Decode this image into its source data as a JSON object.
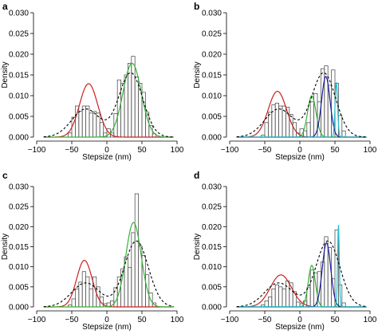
{
  "colors": {
    "red": "#cc1f1f",
    "green": "#36b236",
    "blue": "#1a1a9e",
    "cyan": "#1fbfd0",
    "dashed": "#000000",
    "bar_edge": "#555555"
  },
  "chart_data": [
    {
      "type": "bar",
      "panel_label": "a",
      "xlabel": "Stepsize (nm)",
      "ylabel": "Density",
      "xlim": [
        -100,
        100
      ],
      "ylim": [
        0,
        0.03
      ],
      "xticks": [
        -100,
        -50,
        0,
        50,
        100
      ],
      "xtick_labels": [
        "−100",
        "−50",
        "0",
        "50",
        "100"
      ],
      "yticks": [
        0,
        0.005,
        0.01,
        0.015,
        0.02,
        0.025,
        0.03
      ],
      "ytick_labels": [
        "0.000",
        "0.005",
        "0.010",
        "0.015",
        "0.020",
        "0.025",
        "0.030"
      ],
      "bin_width": 5,
      "hist_x": [
        -55,
        -50,
        -45,
        -40,
        -35,
        -30,
        -25,
        -20,
        -15,
        -10,
        -5,
        0,
        5,
        10,
        15,
        20,
        25,
        30,
        35,
        40,
        45,
        50,
        55,
        60,
        65
      ],
      "hist_y": [
        0.001,
        0.0048,
        0.0075,
        0.0062,
        0.0075,
        0.0075,
        0.0058,
        0.0062,
        0.0058,
        0.0035,
        0.001,
        0.002,
        0.001,
        0.0057,
        0.0138,
        0.013,
        0.015,
        0.0178,
        0.0195,
        0.0145,
        0.013,
        0.0108,
        0.006,
        0.0028,
        0.0008
      ],
      "curves": [
        {
          "color": "red",
          "style": "solid",
          "components": [
            [
              0.42,
              -26,
              13
            ]
          ]
        },
        {
          "color": "green",
          "style": "solid",
          "components": [
            [
              0.58,
              36,
              13
            ]
          ]
        },
        {
          "color": "dashed",
          "style": "dashed",
          "components": [
            [
              0.34,
              -30,
              20
            ],
            [
              0.66,
              34,
              17
            ]
          ]
        }
      ]
    },
    {
      "type": "bar",
      "panel_label": "b",
      "xlabel": "Stepsize (nm)",
      "ylabel": "Density",
      "xlim": [
        -100,
        100
      ],
      "ylim": [
        0,
        0.03
      ],
      "xticks": [
        -100,
        -50,
        0,
        50,
        100
      ],
      "xtick_labels": [
        "−100",
        "−50",
        "0",
        "50",
        "100"
      ],
      "yticks": [
        0,
        0.005,
        0.01,
        0.015,
        0.02,
        0.025,
        0.03
      ],
      "ytick_labels": [
        "0.000",
        "0.005",
        "0.010",
        "0.015",
        "0.020",
        "0.025",
        "0.030"
      ],
      "bin_width": 5,
      "hist_x": [
        -55,
        -50,
        -45,
        -40,
        -35,
        -30,
        -25,
        -20,
        -15,
        -10,
        -5,
        0,
        5,
        10,
        15,
        20,
        25,
        30,
        35,
        40,
        45,
        50,
        55,
        60
      ],
      "hist_y": [
        0.0005,
        0.0035,
        0.006,
        0.0078,
        0.0082,
        0.0075,
        0.0075,
        0.0072,
        0.0055,
        0.0035,
        0.001,
        0.002,
        0.0015,
        0.0035,
        0.0085,
        0.0105,
        0.0085,
        0.0165,
        0.0172,
        0.0125,
        0.0162,
        0.013,
        0.0052,
        0.0015
      ],
      "curves": [
        {
          "color": "red",
          "style": "solid",
          "components": [
            [
              0.36,
              -32,
              13
            ]
          ]
        },
        {
          "color": "green",
          "style": "solid",
          "components": [
            [
              0.15,
              17,
              6
            ]
          ]
        },
        {
          "color": "blue",
          "style": "solid",
          "components": [
            [
              0.22,
              37,
              6
            ]
          ]
        },
        {
          "color": "cyan",
          "style": "solid",
          "components": [
            [
              0.06,
              52,
              1.8
            ]
          ]
        },
        {
          "color": "dashed",
          "style": "dashed",
          "components": [
            [
              0.34,
              -30,
              20
            ],
            [
              0.66,
              34,
              17
            ]
          ]
        }
      ]
    },
    {
      "type": "bar",
      "panel_label": "c",
      "xlabel": "Stepsize (nm)",
      "ylabel": "Density",
      "xlim": [
        -100,
        100
      ],
      "ylim": [
        0,
        0.03
      ],
      "xticks": [
        -100,
        -50,
        0,
        50,
        100
      ],
      "xtick_labels": [
        "−100",
        "−50",
        "0",
        "50",
        "100"
      ],
      "yticks": [
        0,
        0.005,
        0.01,
        0.015,
        0.02,
        0.025,
        0.03
      ],
      "ytick_labels": [
        "0.000",
        "0.005",
        "0.010",
        "0.015",
        "0.020",
        "0.025",
        "0.030"
      ],
      "bin_width": 5,
      "hist_x": [
        -55,
        -50,
        -45,
        -40,
        -35,
        -30,
        -25,
        -20,
        -15,
        -10,
        -5,
        0,
        5,
        10,
        15,
        20,
        25,
        30,
        35,
        40,
        45,
        50,
        55,
        60,
        65
      ],
      "hist_y": [
        0.0005,
        0.002,
        0.0045,
        0.0062,
        0.0088,
        0.0075,
        0.0045,
        0.0075,
        0.005,
        0.0025,
        0.0008,
        0.001,
        0.0015,
        0.0048,
        0.0075,
        0.0095,
        0.0125,
        0.0098,
        0.0185,
        0.0282,
        0.0152,
        0.0128,
        0.008,
        0.0035,
        0.001
      ],
      "curves": [
        {
          "color": "red",
          "style": "solid",
          "components": [
            [
              0.32,
              -32,
              11
            ]
          ]
        },
        {
          "color": "green",
          "style": "solid",
          "components": [
            [
              0.58,
              38,
              11
            ]
          ]
        },
        {
          "color": "dashed",
          "style": "dashed",
          "components": [
            [
              0.3,
              -30,
              20
            ],
            [
              0.7,
              42,
              17
            ]
          ]
        }
      ]
    },
    {
      "type": "bar",
      "panel_label": "d",
      "xlabel": "Stepsize (nm)",
      "ylabel": "Density",
      "xlim": [
        -100,
        100
      ],
      "ylim": [
        0,
        0.03
      ],
      "xticks": [
        -100,
        -50,
        0,
        50,
        100
      ],
      "xtick_labels": [
        "−100",
        "−50",
        "0",
        "50",
        "100"
      ],
      "yticks": [
        0,
        0.005,
        0.01,
        0.015,
        0.02,
        0.025,
        0.03
      ],
      "ytick_labels": [
        "0.000",
        "0.005",
        "0.010",
        "0.015",
        "0.020",
        "0.025",
        "0.030"
      ],
      "bin_width": 5,
      "hist_x": [
        -55,
        -50,
        -45,
        -40,
        -35,
        -30,
        -25,
        -20,
        -15,
        -10,
        -5,
        0,
        5,
        10,
        15,
        20,
        25,
        30,
        35,
        40,
        45,
        50,
        55,
        60
      ],
      "hist_y": [
        0.0005,
        0.0015,
        0.0025,
        0.0045,
        0.0055,
        0.005,
        0.0045,
        0.0065,
        0.006,
        0.0038,
        0.0012,
        0.0008,
        0.0015,
        0.0048,
        0.0092,
        0.0085,
        0.0088,
        0.0112,
        0.0175,
        0.0148,
        0.007,
        0.0192,
        0.0055,
        0.001
      ],
      "curves": [
        {
          "color": "red",
          "style": "solid",
          "components": [
            [
              0.3,
              -27,
              15
            ]
          ]
        },
        {
          "color": "green",
          "style": "solid",
          "components": [
            [
              0.13,
              17,
              5
            ]
          ]
        },
        {
          "color": "blue",
          "style": "solid",
          "components": [
            [
              0.24,
              38,
              6
            ]
          ]
        },
        {
          "color": "cyan",
          "style": "solid",
          "components": [
            [
              0.062,
              55,
              1.2
            ]
          ]
        },
        {
          "color": "dashed",
          "style": "dashed",
          "components": [
            [
              0.3,
              -30,
              20
            ],
            [
              0.7,
              40,
              17
            ]
          ]
        }
      ]
    }
  ]
}
